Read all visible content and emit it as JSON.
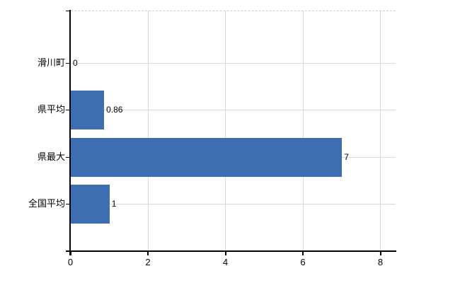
{
  "chart_data": {
    "type": "bar",
    "orientation": "horizontal",
    "title": "",
    "xlabel": "",
    "ylabel": "",
    "categories": [
      "滑川町",
      "県平均",
      "県最大",
      "全国平均"
    ],
    "values": [
      0,
      0.86,
      7,
      1
    ],
    "value_labels": [
      "0",
      "0.86",
      "7",
      "1"
    ],
    "xlim": [
      0,
      8
    ],
    "x_ticks": [
      0,
      2,
      4,
      6,
      8
    ],
    "x_tick_labels": [
      "0",
      "2",
      "4",
      "6",
      "8"
    ],
    "grid": true,
    "legend": "none",
    "colors": {
      "bar": "#3e6eb2",
      "gridline": "#d9d9d9",
      "top_border": "#cfcfcf",
      "axis": "#000000",
      "text": "#000000",
      "background": "#ffffff"
    }
  }
}
